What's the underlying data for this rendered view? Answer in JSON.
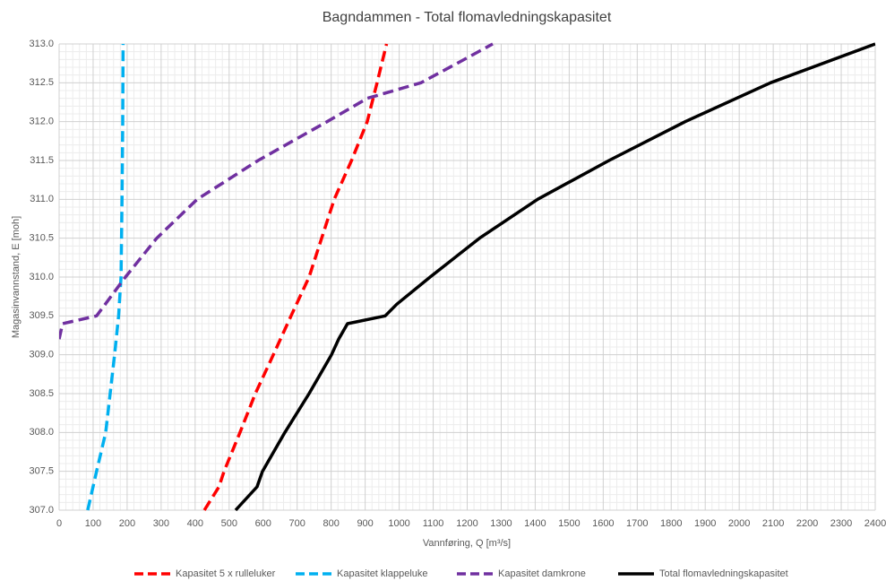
{
  "chart_data": {
    "type": "line",
    "title": "Bagndammen - Total flomavledningskapasitet",
    "x_label": "Vannføring, Q [m³/s]",
    "y_label": "Magasinvannstand, E [moh]",
    "xlim": [
      0,
      2400
    ],
    "ylim": [
      307,
      313
    ],
    "xticks": [
      0,
      100,
      200,
      300,
      400,
      500,
      600,
      700,
      800,
      900,
      1000,
      1100,
      1200,
      1300,
      1400,
      1500,
      1600,
      1700,
      1800,
      1900,
      2000,
      2100,
      2200,
      2300,
      2400
    ],
    "yticks": [
      {
        "value": 307,
        "label": "307.0"
      },
      307.5,
      {
        "value": 308,
        "label": "308.0"
      },
      308.5,
      {
        "value": 309,
        "label": "309.0"
      },
      309.5,
      {
        "value": 310,
        "label": "310.0"
      },
      310.5,
      {
        "value": 311,
        "label": "311.0"
      },
      311.5,
      {
        "value": 312,
        "label": "312.0"
      },
      312.5,
      {
        "value": 313,
        "label": "313.0"
      }
    ],
    "grid": true,
    "minor_grid": true,
    "legend": "bottom",
    "series": [
      {
        "name": "Kapasitet 5 x rulleluker",
        "color": "#ff0000",
        "dashed": true,
        "x": [
          427,
          470,
          485,
          532,
          577,
          630,
          682,
          735,
          809,
          860,
          906,
          935,
          963
        ],
        "values": [
          307,
          307.3,
          307.5,
          308,
          308.5,
          309,
          309.5,
          310,
          311,
          311.5,
          312,
          312.5,
          313
        ]
      },
      {
        "name": "Kapasitet klappeluke",
        "color": "#00b0f0",
        "dashed": true,
        "x": [
          84,
          110,
          137,
          163,
          175,
          182,
          185,
          187,
          188
        ],
        "values": [
          307,
          307.5,
          308,
          309,
          309.5,
          310,
          311,
          312,
          313
        ]
      },
      {
        "name": "Kapasitet damkrone",
        "color": "#7030a0",
        "dashed": true,
        "x": [
          0,
          10,
          110,
          195,
          287,
          406,
          585,
          788,
          906,
          1064,
          1170,
          1275
        ],
        "values": [
          309.2,
          309.4,
          309.5,
          310,
          310.5,
          311,
          311.5,
          312,
          312.3,
          312.5,
          312.75,
          313
        ]
      },
      {
        "name": "Total flomavledningskapasitet",
        "color": "#000000",
        "dashed": false,
        "x": [
          519,
          582,
          598,
          664,
          735,
          801,
          822,
          848,
          959,
          993,
          1091,
          1236,
          1407,
          1617,
          1841,
          2092,
          2400
        ],
        "values": [
          307,
          307.3,
          307.5,
          308,
          308.5,
          309,
          309.2,
          309.4,
          309.5,
          309.65,
          310,
          310.5,
          311,
          311.5,
          312,
          312.5,
          313
        ]
      }
    ]
  }
}
